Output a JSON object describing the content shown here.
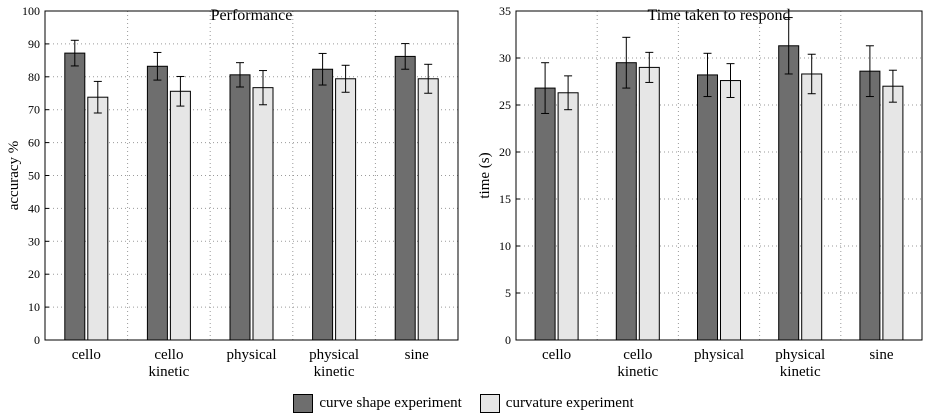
{
  "chart_data": [
    {
      "type": "bar",
      "title": "Performance",
      "xlabel": "",
      "ylabel": "accuracy %",
      "ylim": [
        0,
        100
      ],
      "yticks": [
        0,
        10,
        20,
        30,
        40,
        50,
        60,
        70,
        80,
        90,
        100
      ],
      "categories": [
        "cello",
        "cello\nkinetic",
        "physical",
        "physical\nkinetic",
        "sine"
      ],
      "series": [
        {
          "name": "curve shape experiment",
          "values": [
            87.2,
            83.2,
            80.6,
            82.3,
            86.2
          ],
          "errors": [
            3.9,
            4.2,
            3.7,
            4.8,
            3.9
          ]
        },
        {
          "name": "curvature experiment",
          "values": [
            73.8,
            75.6,
            76.7,
            79.4,
            79.4
          ],
          "errors": [
            4.8,
            4.5,
            5.2,
            4.1,
            4.4
          ]
        }
      ],
      "grid": true,
      "legend": "bottom-center"
    },
    {
      "type": "bar",
      "title": "Time taken to respond",
      "xlabel": "",
      "ylabel": "time (s)",
      "ylim": [
        0,
        35
      ],
      "yticks": [
        0,
        5,
        10,
        15,
        20,
        25,
        30,
        35
      ],
      "categories": [
        "cello",
        "cello\nkinetic",
        "physical",
        "physical\nkinetic",
        "sine"
      ],
      "series": [
        {
          "name": "curve shape experiment",
          "values": [
            26.8,
            29.5,
            28.2,
            31.3,
            28.6
          ],
          "errors": [
            2.7,
            2.7,
            2.3,
            3.0,
            2.7
          ]
        },
        {
          "name": "curvature experiment",
          "values": [
            26.3,
            29.0,
            27.6,
            28.3,
            27.0
          ],
          "errors": [
            1.8,
            1.6,
            1.8,
            2.1,
            1.7
          ]
        }
      ],
      "grid": true,
      "legend": "bottom-center"
    }
  ],
  "legend": {
    "items": [
      {
        "label": "curve shape experiment",
        "color": "#6e6e6e"
      },
      {
        "label": "curvature experiment",
        "color": "#e6e6e6"
      }
    ]
  },
  "colors": {
    "series_dark": "#6e6e6e",
    "series_light": "#e6e6e6",
    "grid": "#9a9a9a"
  }
}
